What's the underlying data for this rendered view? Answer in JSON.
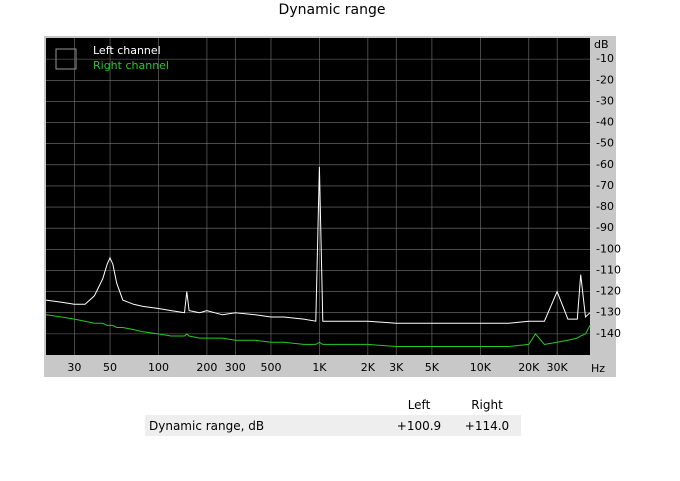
{
  "chart_data": {
    "type": "line",
    "title": "Dynamic range",
    "x_unit": "Hz",
    "y_unit": "dB",
    "log_x": true,
    "grid": true,
    "xlim": [
      20,
      48000
    ],
    "ylim": [
      -150,
      0
    ],
    "xticks": [
      30,
      50,
      100,
      200,
      300,
      500,
      {
        "value": 1000,
        "label": "1K"
      },
      {
        "value": 2000,
        "label": "2K"
      },
      {
        "value": 3000,
        "label": "3K"
      },
      {
        "value": 5000,
        "label": "5K"
      },
      {
        "value": 10000,
        "label": "10K"
      },
      {
        "value": 20000,
        "label": "20K"
      },
      {
        "value": 30000,
        "label": "30K"
      }
    ],
    "yticks": [
      -10,
      -20,
      -30,
      -40,
      -50,
      -60,
      -70,
      -80,
      -90,
      -100,
      -110,
      -120,
      -130,
      -140
    ],
    "x": [
      20,
      25,
      30,
      35,
      40,
      45,
      48,
      50,
      52,
      55,
      60,
      70,
      80,
      100,
      120,
      145,
      150,
      155,
      180,
      200,
      250,
      300,
      400,
      500,
      600,
      800,
      950,
      1000,
      1050,
      1500,
      2000,
      3000,
      4000,
      5000,
      7000,
      10000,
      15000,
      20000,
      22000,
      25000,
      30000,
      35000,
      40000,
      42000,
      45000,
      48000
    ],
    "series": [
      {
        "name": "Left channel",
        "color": "#ffffff",
        "values": [
          -124,
          -125,
          -126,
          -126,
          -122,
          -114,
          -107,
          -104,
          -107,
          -116,
          -124,
          -126,
          -127,
          -128,
          -129,
          -130,
          -120,
          -129,
          -130,
          -129,
          -131,
          -130,
          -131,
          -132,
          -132,
          -133,
          -134,
          -61,
          -134,
          -134,
          -134,
          -135,
          -135,
          -135,
          -135,
          -135,
          -135,
          -134,
          -134,
          -134,
          -120,
          -133,
          -133,
          -112,
          -132,
          -130
        ]
      },
      {
        "name": "Right channel",
        "color": "#22cc22",
        "values": [
          -131,
          -132,
          -133,
          -134,
          -135,
          -135,
          -136,
          -136,
          -136,
          -137,
          -137,
          -138,
          -139,
          -140,
          -141,
          -141,
          -140,
          -141,
          -142,
          -142,
          -142,
          -143,
          -143,
          -144,
          -144,
          -145,
          -145,
          -144,
          -145,
          -145,
          -145,
          -146,
          -146,
          -146,
          -146,
          -146,
          -146,
          -145,
          -140,
          -145,
          -144,
          -143,
          -142,
          -141,
          -140,
          -136
        ]
      }
    ]
  },
  "table": {
    "header": [
      "Left",
      "Right"
    ],
    "rows": [
      [
        "Dynamic range, dB",
        "+100.9",
        "+114.0"
      ]
    ]
  }
}
